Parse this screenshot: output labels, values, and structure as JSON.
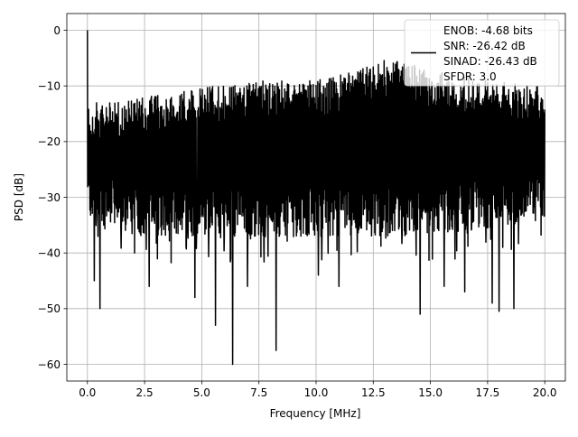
{
  "chart_data": {
    "type": "line",
    "title": "",
    "xlabel": "Frequency [MHz]",
    "ylabel": "PSD [dB]",
    "xlim": [
      -0.9,
      20.9
    ],
    "ylim": [
      -63.0,
      3.0
    ],
    "xticks": [
      0.0,
      2.5,
      5.0,
      7.5,
      10.0,
      12.5,
      15.0,
      17.5,
      20.0
    ],
    "xtick_labels": [
      "0.0",
      "2.5",
      "5.0",
      "7.5",
      "10.0",
      "12.5",
      "15.0",
      "17.5",
      "20.0"
    ],
    "yticks": [
      0,
      -10,
      -20,
      -30,
      -40,
      -50,
      -60
    ],
    "ytick_labels": [
      "0",
      "−10",
      "−20",
      "−30",
      "−40",
      "−50",
      "−60"
    ],
    "grid": true,
    "legend_position": "top-right",
    "legend_lines": [
      "ENOB: -4.68 bits",
      "SNR: -26.42 dB",
      "SINAD: -26.43 dB",
      "SFDR: 3.0"
    ],
    "series": [
      {
        "color": "#000000",
        "style": "noise-band",
        "x_range": [
          0.0,
          20.0
        ],
        "peak": {
          "x": 0.0,
          "y": 0.0
        },
        "upper_envelope": [
          [
            0.0,
            -13
          ],
          [
            1.0,
            -13
          ],
          [
            2.5,
            -12
          ],
          [
            4.0,
            -11
          ],
          [
            5.5,
            -10
          ],
          [
            7.0,
            -9
          ],
          [
            9.0,
            -9
          ],
          [
            10.0,
            -9
          ],
          [
            12.0,
            -7
          ],
          [
            13.0,
            -5
          ],
          [
            15.0,
            -7
          ],
          [
            17.5,
            -9
          ],
          [
            20.0,
            -10
          ]
        ],
        "lower_envelope": [
          [
            0.0,
            -30
          ],
          [
            2.0,
            -33
          ],
          [
            5.0,
            -33
          ],
          [
            10.0,
            -33
          ],
          [
            15.0,
            -33
          ],
          [
            20.0,
            -30
          ]
        ],
        "deep_notches": [
          {
            "x": 0.3,
            "y": -45
          },
          {
            "x": 0.55,
            "y": -50
          },
          {
            "x": 2.7,
            "y": -46
          },
          {
            "x": 4.7,
            "y": -48
          },
          {
            "x": 5.6,
            "y": -53
          },
          {
            "x": 6.35,
            "y": -60
          },
          {
            "x": 7.0,
            "y": -46
          },
          {
            "x": 8.25,
            "y": -57.5
          },
          {
            "x": 10.1,
            "y": -44
          },
          {
            "x": 11.0,
            "y": -46
          },
          {
            "x": 14.55,
            "y": -51
          },
          {
            "x": 15.6,
            "y": -46
          },
          {
            "x": 16.5,
            "y": -47
          },
          {
            "x": 17.7,
            "y": -49
          },
          {
            "x": 18.0,
            "y": -50.5
          },
          {
            "x": 18.65,
            "y": -50
          }
        ]
      }
    ]
  }
}
